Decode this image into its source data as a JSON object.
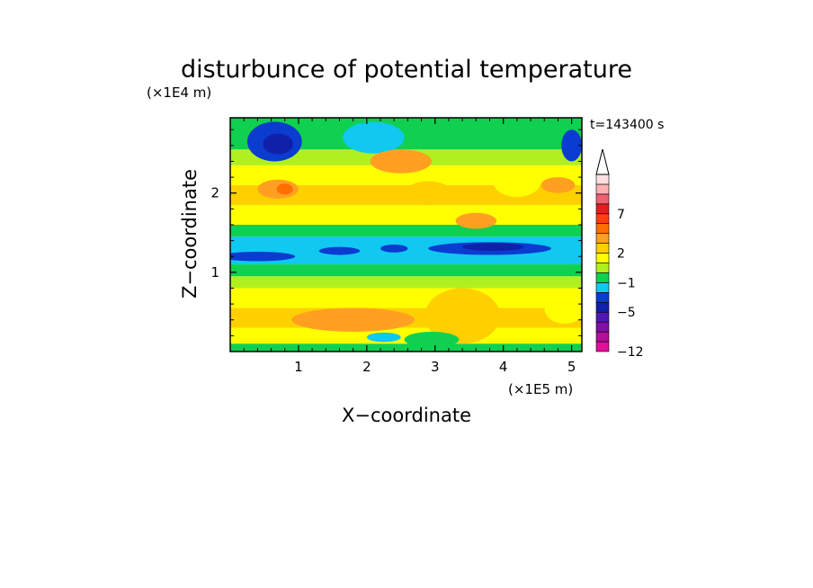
{
  "chart_data": {
    "type": "heatmap",
    "title": "disturbunce of potential temperature",
    "xlabel": "X−coordinate",
    "ylabel": "Z−coordinate",
    "x_unit": "(×1E5 m)",
    "y_unit": "(×1E4 m)",
    "time_label": "t=143400 s",
    "xlim": [
      0,
      5.15
    ],
    "ylim": [
      0,
      2.95
    ],
    "x_ticks": [
      "1",
      "2",
      "3",
      "4",
      "5"
    ],
    "x_tick_values": [
      1,
      2,
      3,
      4,
      5
    ],
    "y_ticks": [
      "1",
      "2"
    ],
    "y_tick_values": [
      1,
      2
    ],
    "grid": false,
    "colorbar": {
      "colors": [
        "#e0109a",
        "#b0109a",
        "#8010a8",
        "#5018b0",
        "#1020a8",
        "#0a3cd0",
        "#10c8f0",
        "#10d050",
        "#b0f020",
        "#ffff00",
        "#ffd000",
        "#ffa020",
        "#ff7000",
        "#ff4010",
        "#e02020",
        "#f06070",
        "#ffb0b0",
        "#ffe0e0"
      ],
      "labels": [
        {
          "text": "7",
          "index": 14
        },
        {
          "text": "2",
          "index": 10
        },
        {
          "text": "−1",
          "index": 7
        },
        {
          "text": "−5",
          "index": 4
        },
        {
          "text": "−12",
          "index": 0
        }
      ],
      "extend": "max"
    },
    "bands": [
      {
        "z0": 0.0,
        "z1": 0.1,
        "color": "#10d050"
      },
      {
        "z0": 0.1,
        "z1": 0.3,
        "color": "#ffff00"
      },
      {
        "z0": 0.3,
        "z1": 0.55,
        "color": "#ffd000"
      },
      {
        "z0": 0.55,
        "z1": 0.8,
        "color": "#ffff00"
      },
      {
        "z0": 0.8,
        "z1": 0.95,
        "color": "#b0f020"
      },
      {
        "z0": 0.95,
        "z1": 1.1,
        "color": "#10d050"
      },
      {
        "z0": 1.1,
        "z1": 1.45,
        "color": "#10c8f0"
      },
      {
        "z0": 1.45,
        "z1": 1.6,
        "color": "#10d050"
      },
      {
        "z0": 1.6,
        "z1": 1.85,
        "color": "#ffff00"
      },
      {
        "z0": 1.85,
        "z1": 2.1,
        "color": "#ffd000"
      },
      {
        "z0": 2.1,
        "z1": 2.35,
        "color": "#ffff00"
      },
      {
        "z0": 2.35,
        "z1": 2.55,
        "color": "#b0f020"
      },
      {
        "z0": 2.55,
        "z1": 2.95,
        "color": "#10d050"
      }
    ],
    "blobs": [
      {
        "x": 0.65,
        "z": 2.65,
        "rx": 0.4,
        "rz": 0.25,
        "color": "#0a3cd0"
      },
      {
        "x": 0.7,
        "z": 2.62,
        "rx": 0.22,
        "rz": 0.13,
        "color": "#1020a8"
      },
      {
        "x": 2.1,
        "z": 2.7,
        "rx": 0.45,
        "rz": 0.2,
        "color": "#10c8f0"
      },
      {
        "x": 5.0,
        "z": 2.6,
        "rx": 0.15,
        "rz": 0.2,
        "color": "#0a3cd0"
      },
      {
        "x": 2.5,
        "z": 2.4,
        "rx": 0.45,
        "rz": 0.15,
        "color": "#ffa020"
      },
      {
        "x": 0.7,
        "z": 2.05,
        "rx": 0.3,
        "rz": 0.12,
        "color": "#ffa020"
      },
      {
        "x": 0.8,
        "z": 2.05,
        "rx": 0.12,
        "rz": 0.07,
        "color": "#ff7000"
      },
      {
        "x": 2.9,
        "z": 2.0,
        "rx": 0.35,
        "rz": 0.15,
        "color": "#ffd000"
      },
      {
        "x": 3.6,
        "z": 1.65,
        "rx": 0.3,
        "rz": 0.1,
        "color": "#ffa020"
      },
      {
        "x": 0.4,
        "z": 1.2,
        "rx": 0.55,
        "rz": 0.06,
        "color": "#0a3cd0"
      },
      {
        "x": 1.6,
        "z": 1.27,
        "rx": 0.3,
        "rz": 0.05,
        "color": "#0a3cd0"
      },
      {
        "x": 2.4,
        "z": 1.3,
        "rx": 0.2,
        "rz": 0.05,
        "color": "#0a3cd0"
      },
      {
        "x": 3.8,
        "z": 1.3,
        "rx": 0.9,
        "rz": 0.08,
        "color": "#0a3cd0"
      },
      {
        "x": 3.85,
        "z": 1.32,
        "rx": 0.45,
        "rz": 0.05,
        "color": "#1020a8"
      },
      {
        "x": 3.4,
        "z": 0.45,
        "rx": 0.55,
        "rz": 0.35,
        "color": "#ffd000"
      },
      {
        "x": 1.8,
        "z": 0.4,
        "rx": 0.9,
        "rz": 0.15,
        "color": "#ffa020"
      },
      {
        "x": 2.95,
        "z": 0.15,
        "rx": 0.4,
        "rz": 0.1,
        "color": "#10d050"
      },
      {
        "x": 2.25,
        "z": 0.18,
        "rx": 0.25,
        "rz": 0.06,
        "color": "#10c8f0"
      },
      {
        "x": 4.9,
        "z": 0.55,
        "rx": 0.3,
        "rz": 0.2,
        "color": "#ffff00"
      },
      {
        "x": 4.2,
        "z": 2.15,
        "rx": 0.35,
        "rz": 0.2,
        "color": "#ffff00"
      },
      {
        "x": 4.8,
        "z": 2.1,
        "rx": 0.25,
        "rz": 0.1,
        "color": "#ffa020"
      }
    ]
  }
}
